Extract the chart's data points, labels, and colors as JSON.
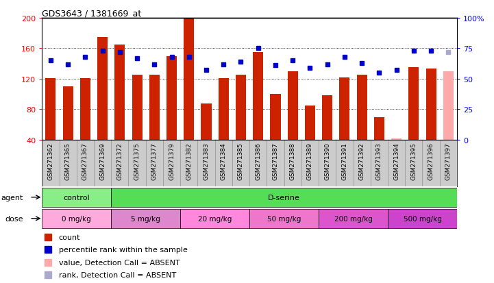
{
  "title": "GDS3643 / 1381669_at",
  "samples": [
    "GSM271362",
    "GSM271365",
    "GSM271367",
    "GSM271369",
    "GSM271372",
    "GSM271375",
    "GSM271377",
    "GSM271379",
    "GSM271382",
    "GSM271383",
    "GSM271384",
    "GSM271385",
    "GSM271386",
    "GSM271387",
    "GSM271388",
    "GSM271389",
    "GSM271390",
    "GSM271391",
    "GSM271392",
    "GSM271393",
    "GSM271394",
    "GSM271395",
    "GSM271396",
    "GSM271397"
  ],
  "bar_values": [
    121,
    110,
    121,
    175,
    165,
    125,
    125,
    150,
    200,
    88,
    121,
    125,
    155,
    100,
    130,
    85,
    98,
    122,
    125,
    70,
    42,
    135,
    133,
    130
  ],
  "bar_absent": [
    false,
    false,
    false,
    false,
    false,
    false,
    false,
    false,
    false,
    false,
    false,
    false,
    false,
    false,
    false,
    false,
    false,
    false,
    false,
    false,
    true,
    false,
    false,
    true
  ],
  "rank_values": [
    65,
    62,
    68,
    73,
    72,
    67,
    62,
    68,
    68,
    57,
    62,
    64,
    75,
    61,
    65,
    59,
    62,
    68,
    63,
    55,
    57,
    73,
    73,
    72
  ],
  "rank_absent": [
    false,
    false,
    false,
    false,
    false,
    false,
    false,
    false,
    false,
    false,
    false,
    false,
    false,
    false,
    false,
    false,
    false,
    false,
    false,
    false,
    false,
    false,
    false,
    true
  ],
  "agent_groups": [
    {
      "label": "control",
      "start": 0,
      "end": 4
    },
    {
      "label": "D-serine",
      "start": 4,
      "end": 24
    }
  ],
  "dose_groups": [
    {
      "label": "0 mg/kg",
      "start": 0,
      "end": 4
    },
    {
      "label": "5 mg/kg",
      "start": 4,
      "end": 8
    },
    {
      "label": "20 mg/kg",
      "start": 8,
      "end": 12
    },
    {
      "label": "50 mg/kg",
      "start": 12,
      "end": 16
    },
    {
      "label": "200 mg/kg",
      "start": 16,
      "end": 20
    },
    {
      "label": "500 mg/kg",
      "start": 20,
      "end": 24
    }
  ],
  "ylim_left": [
    40,
    200
  ],
  "ylim_right": [
    0,
    100
  ],
  "yticks_left": [
    40,
    80,
    120,
    160,
    200
  ],
  "yticks_right": [
    0,
    25,
    50,
    75,
    100
  ],
  "bar_color": "#cc2200",
  "bar_absent_color": "#ffaaaa",
  "rank_color": "#0000cc",
  "rank_absent_color": "#aaaacc",
  "agent_control_color": "#88ee88",
  "agent_dserine_color": "#55dd55",
  "dose_colors": [
    "#ffaadd",
    "#dd88cc",
    "#ff88dd",
    "#ee77cc",
    "#dd55cc",
    "#cc44cc"
  ],
  "xlabel_bg_color": "#cccccc",
  "agent_label_color": "black",
  "dose_label_color": "black"
}
